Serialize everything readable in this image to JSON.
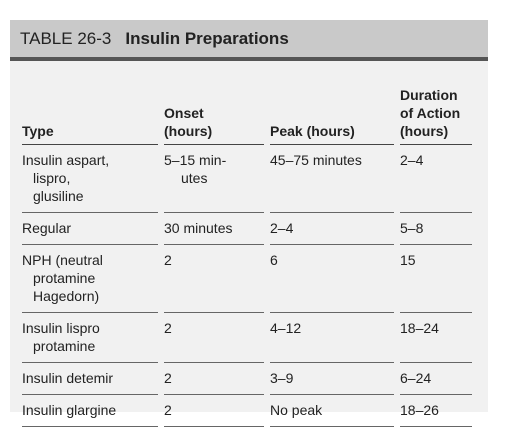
{
  "header": {
    "label": "TABLE 26-3",
    "title": "Insulin Preparations"
  },
  "table": {
    "columns": [
      [
        "Type"
      ],
      [
        "Onset",
        "(hours)"
      ],
      [
        "Peak (hours)"
      ],
      [
        "Duration",
        "of Action",
        "(hours)"
      ]
    ],
    "rows": [
      [
        [
          "Insulin aspart,",
          "lispro,",
          "glusiline"
        ],
        [
          "5–15 min-",
          "utes"
        ],
        [
          "45–75 minutes"
        ],
        [
          "2–4"
        ]
      ],
      [
        [
          "Regular"
        ],
        [
          "30 minutes"
        ],
        [
          "2–4"
        ],
        [
          "5–8"
        ]
      ],
      [
        [
          "NPH (neutral",
          "protamine",
          "Hagedorn)"
        ],
        [
          "2"
        ],
        [
          "6"
        ],
        [
          "15"
        ]
      ],
      [
        [
          "Insulin lispro",
          "protamine"
        ],
        [
          "2"
        ],
        [
          "4–12"
        ],
        [
          "18–24"
        ]
      ],
      [
        [
          "Insulin detemir"
        ],
        [
          "2"
        ],
        [
          "3–9"
        ],
        [
          "6–24"
        ]
      ],
      [
        [
          "Insulin glargine"
        ],
        [
          "2"
        ],
        [
          "No peak"
        ],
        [
          "18–26"
        ]
      ]
    ]
  }
}
